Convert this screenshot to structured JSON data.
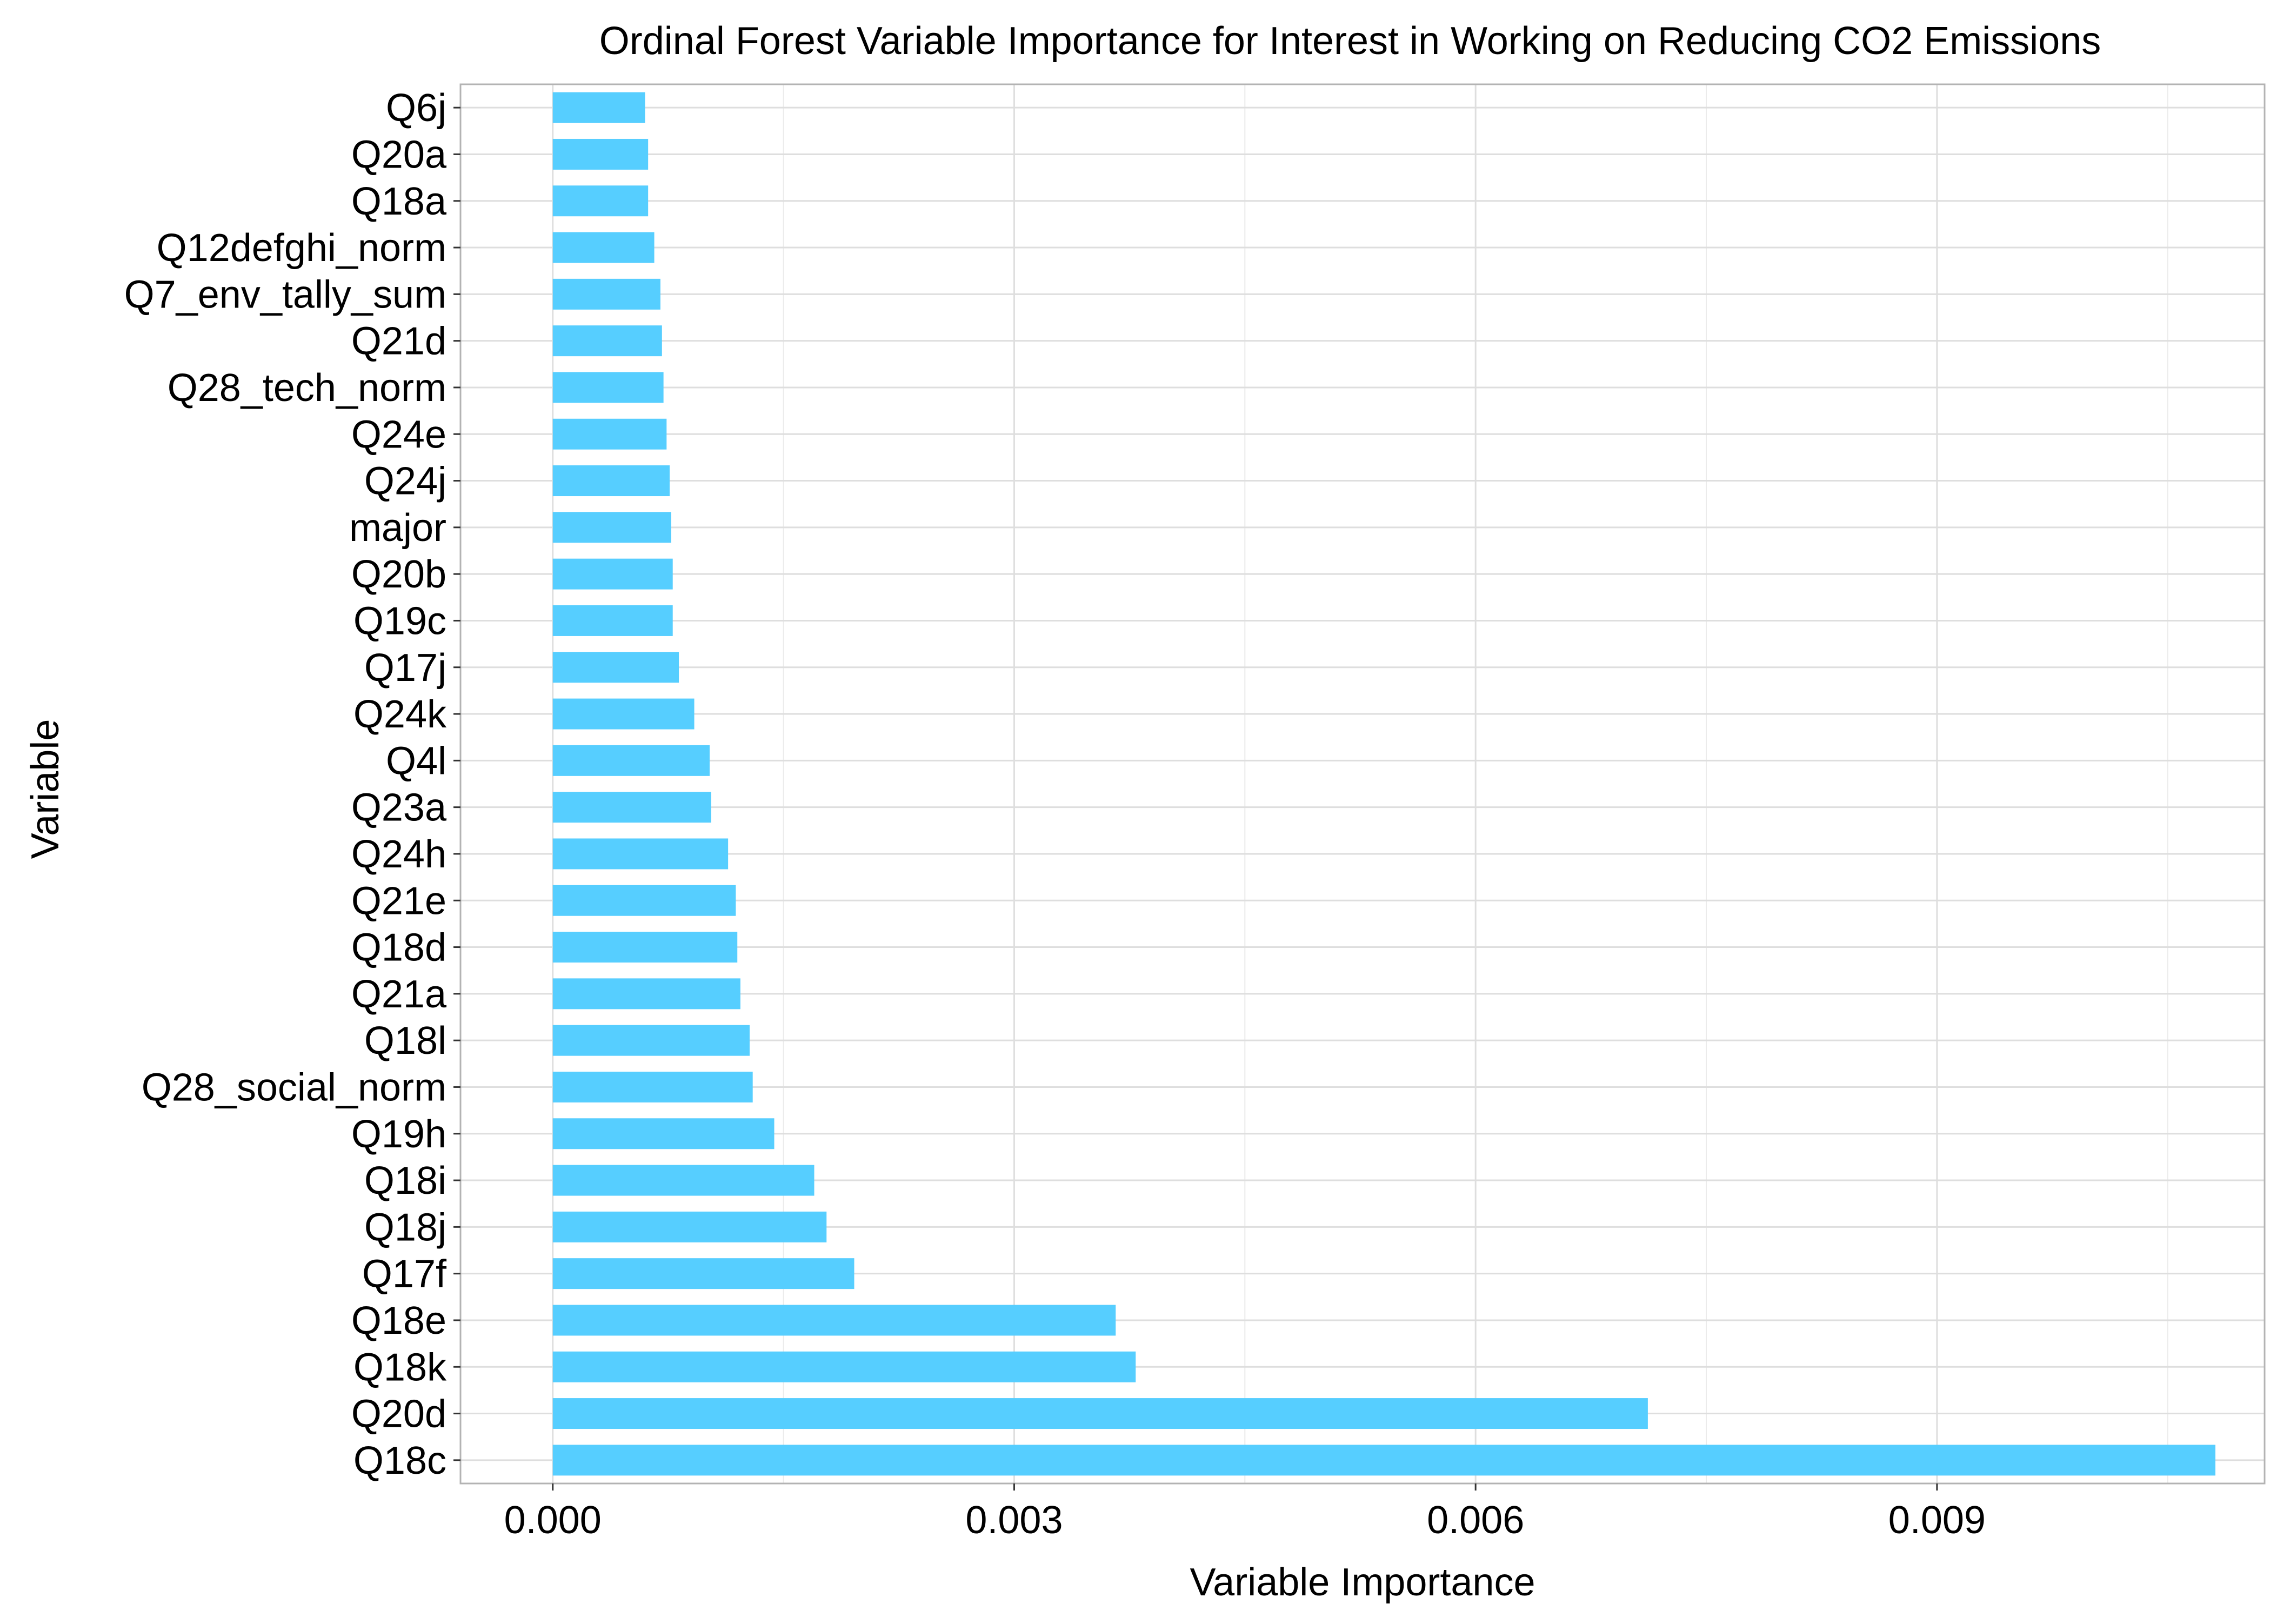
{
  "chart_data": {
    "type": "bar",
    "orientation": "horizontal",
    "title": "Ordinal Forest Variable Importance for Interest in Working on Reducing CO2 Emissions",
    "xlabel": "Variable Importance",
    "ylabel": "Variable",
    "xlim": [
      -0.0006,
      0.01113
    ],
    "x_ticks": [
      0.0,
      0.003,
      0.006,
      0.009
    ],
    "x_tick_labels": [
      "0.000",
      "0.003",
      "0.006",
      "0.009"
    ],
    "grid": true,
    "legend": "none",
    "bar_color": "#56CEFF",
    "categories": [
      "Q6j",
      "Q20a",
      "Q18a",
      "Q12defghi_norm",
      "Q7_env_tally_sum",
      "Q21d",
      "Q28_tech_norm",
      "Q24e",
      "Q24j",
      "major",
      "Q20b",
      "Q19c",
      "Q17j",
      "Q24k",
      "Q4l",
      "Q23a",
      "Q24h",
      "Q21e",
      "Q18d",
      "Q21a",
      "Q18l",
      "Q28_social_norm",
      "Q19h",
      "Q18i",
      "Q18j",
      "Q17f",
      "Q18e",
      "Q18k",
      "Q20d",
      "Q18c"
    ],
    "values": [
      0.0006,
      0.00062,
      0.00062,
      0.00066,
      0.0007,
      0.00071,
      0.00072,
      0.00074,
      0.00076,
      0.00077,
      0.00078,
      0.00078,
      0.00082,
      0.00092,
      0.00102,
      0.00103,
      0.00114,
      0.00119,
      0.0012,
      0.00122,
      0.00128,
      0.0013,
      0.00144,
      0.0017,
      0.00178,
      0.00196,
      0.00366,
      0.00379,
      0.00712,
      0.01081
    ]
  }
}
